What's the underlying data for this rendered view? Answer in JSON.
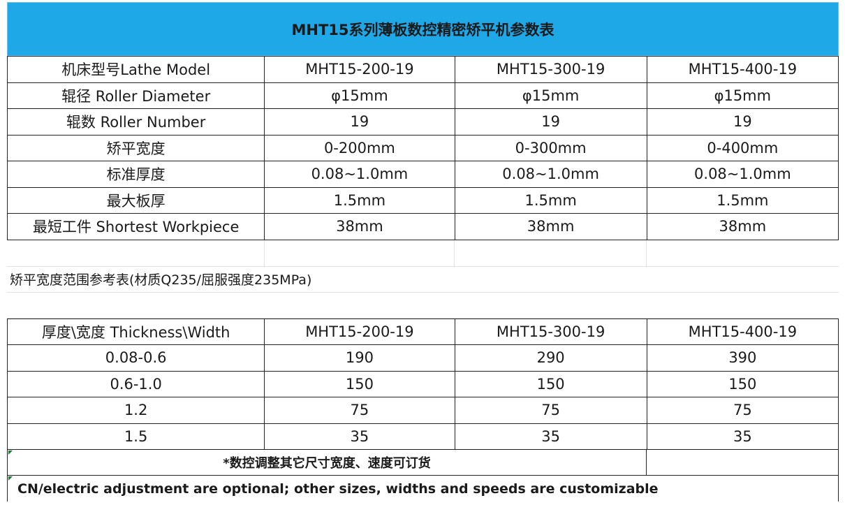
{
  "title": "MHT15系列薄板数控精密矫平机参数表",
  "spec_rows": [
    [
      "机床型号Lathe Model",
      "MHT15-200-19",
      "MHT15-300-19",
      "MHT15-400-19"
    ],
    [
      "辊径 Roller Diameter",
      "φ15mm",
      "φ15mm",
      "φ15mm"
    ],
    [
      "辊数 Roller Number",
      "19",
      "19",
      "19"
    ],
    [
      "矫平宽度",
      "0-200mm",
      "0-300mm",
      "0-400mm"
    ],
    [
      "标准厚度",
      "0.08~1.0mm",
      "0.08~1.0mm",
      "0.08~1.0mm"
    ],
    [
      "最大板厚",
      "1.5mm",
      "1.5mm",
      "1.5mm"
    ],
    [
      "最短工件 Shortest Workpiece",
      "38mm",
      "38mm",
      "38mm"
    ]
  ],
  "reference_note": "矫平宽度范围参考表(材质Q235/屈服强度235MPa)",
  "width_rows": [
    [
      "厚度\\宽度 Thickness\\Width",
      "MHT15-200-19",
      "MHT15-300-19",
      "MHT15-400-19"
    ],
    [
      "0.08-0.6",
      "190",
      "290",
      "390"
    ],
    [
      "0.6-1.0",
      "150",
      "150",
      "150"
    ],
    [
      "1.2",
      "75",
      "75",
      "75"
    ],
    [
      "1.5",
      "35",
      "35",
      "35"
    ]
  ],
  "footer_cn": "*数控调整其它尺寸宽度、速度可订货",
  "footer_en": "CN/electric adjustment are optional; other sizes, widths and speeds are customizable",
  "colors": {
    "header_bg": "#1fa8e8",
    "border": "#222222",
    "cell_marker": "#1e7b34"
  }
}
